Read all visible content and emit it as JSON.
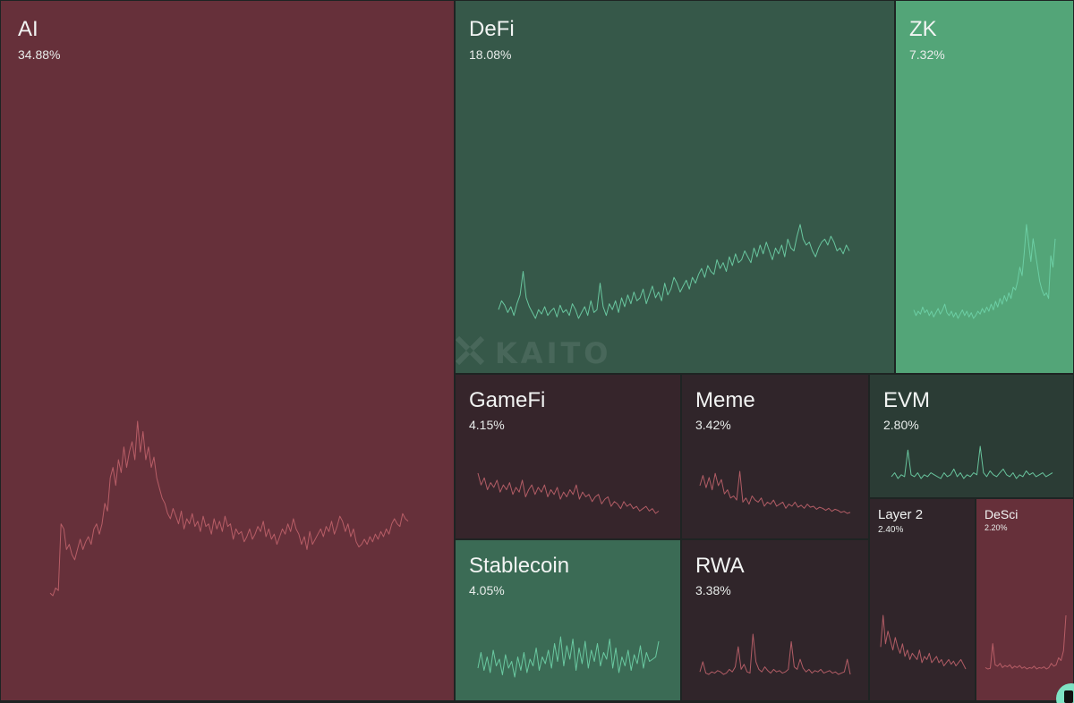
{
  "chart_data": {
    "type": "heatmap",
    "title": "",
    "watermark": "KAITO",
    "colors": {
      "strong_red": "#66303a",
      "dark_red": "#36252b",
      "darker_red": "#30252a",
      "strong_green": "#53a578",
      "mid_green": "#3b6b55",
      "dark_green": "#365849",
      "darkest_green": "#2b3c35",
      "line_red": "#c0636b",
      "line_green": "#6fd3a9"
    },
    "sectors": [
      {
        "name": "AI",
        "label": "AI",
        "share_pct": 34.88,
        "share_label": "34.88%",
        "trend": "down",
        "color_key": "strong_red",
        "series": [
          3,
          2,
          5,
          4,
          30,
          28,
          20,
          22,
          18,
          16,
          20,
          24,
          20,
          23,
          25,
          22,
          28,
          30,
          26,
          30,
          38,
          35,
          48,
          52,
          45,
          55,
          50,
          60,
          52,
          58,
          62,
          55,
          70,
          58,
          66,
          55,
          60,
          52,
          56,
          48,
          44,
          40,
          38,
          34,
          32,
          36,
          33,
          30,
          35,
          28,
          32,
          30,
          34,
          29,
          31,
          27,
          33,
          29,
          30,
          26,
          32,
          28,
          31,
          27,
          33,
          29,
          30,
          24,
          28,
          26,
          27,
          23,
          25,
          28,
          24,
          26,
          29,
          27,
          31,
          25,
          28,
          24,
          26,
          22,
          25,
          28,
          26,
          30,
          27,
          32,
          28,
          26,
          22,
          25,
          20,
          27,
          22,
          24,
          26,
          28,
          25,
          29,
          27,
          31,
          26,
          29,
          33,
          31,
          27,
          30,
          25,
          28,
          23,
          21,
          22,
          24,
          22,
          25,
          23,
          26,
          24,
          27,
          25,
          28,
          26,
          30,
          32,
          30,
          29,
          34,
          32,
          31
        ]
      },
      {
        "name": "DeFi",
        "label": "DeFi",
        "share_pct": 18.08,
        "share_label": "18.08%",
        "trend": "up",
        "color_key": "dark_green",
        "series": [
          12,
          18,
          15,
          10,
          14,
          8,
          16,
          22,
          38,
          20,
          14,
          10,
          6,
          12,
          9,
          14,
          8,
          11,
          13,
          7,
          15,
          10,
          12,
          8,
          16,
          12,
          6,
          10,
          14,
          8,
          18,
          10,
          12,
          30,
          14,
          8,
          16,
          12,
          18,
          10,
          20,
          14,
          22,
          16,
          24,
          18,
          20,
          26,
          16,
          22,
          28,
          20,
          24,
          18,
          30,
          22,
          26,
          34,
          30,
          24,
          28,
          32,
          26,
          34,
          30,
          36,
          40,
          34,
          42,
          38,
          36,
          46,
          40,
          44,
          38,
          48,
          42,
          50,
          44,
          46,
          52,
          48,
          44,
          54,
          48,
          56,
          50,
          58,
          52,
          46,
          54,
          50,
          56,
          48,
          60,
          54,
          52,
          62,
          70,
          60,
          56,
          58,
          52,
          48,
          54,
          58,
          60,
          56,
          62,
          58,
          52,
          54,
          50,
          56,
          52
        ]
      },
      {
        "name": "ZK",
        "label": "ZK",
        "share_pct": 7.32,
        "share_label": "7.32%",
        "trend": "up",
        "color_key": "strong_green",
        "series": [
          10,
          6,
          9,
          7,
          12,
          8,
          10,
          6,
          9,
          5,
          8,
          11,
          7,
          10,
          14,
          8,
          6,
          9,
          5,
          8,
          4,
          7,
          10,
          6,
          9,
          5,
          8,
          4,
          6,
          9,
          7,
          11,
          8,
          12,
          9,
          14,
          10,
          16,
          12,
          18,
          14,
          20,
          16,
          22,
          18,
          26,
          24,
          30,
          40,
          34,
          50,
          70,
          56,
          44,
          60,
          50,
          40,
          30,
          24,
          20,
          22,
          18,
          48,
          40,
          60
        ]
      },
      {
        "name": "GameFi",
        "label": "GameFi",
        "share_pct": 4.15,
        "share_label": "4.15%",
        "trend": "down",
        "color_key": "dark_red",
        "series": [
          40,
          30,
          36,
          26,
          32,
          28,
          34,
          24,
          30,
          26,
          32,
          22,
          28,
          24,
          34,
          20,
          26,
          30,
          22,
          28,
          24,
          30,
          20,
          26,
          22,
          28,
          18,
          24,
          20,
          26,
          22,
          30,
          18,
          24,
          20,
          22,
          16,
          20,
          22,
          14,
          18,
          20,
          12,
          16,
          14,
          10,
          16,
          12,
          14,
          10,
          12,
          8,
          10,
          12,
          8,
          10,
          6,
          8
        ]
      },
      {
        "name": "Meme",
        "label": "Meme",
        "share_pct": 3.42,
        "share_label": "3.42%",
        "trend": "down",
        "color_key": "darker_red",
        "series": [
          30,
          40,
          28,
          38,
          26,
          42,
          30,
          36,
          22,
          26,
          18,
          20,
          16,
          44,
          14,
          18,
          12,
          20,
          16,
          14,
          18,
          10,
          14,
          12,
          16,
          10,
          12,
          14,
          8,
          12,
          10,
          14,
          9,
          11,
          8,
          12,
          9,
          10,
          7,
          9,
          8,
          6,
          8,
          5,
          7,
          6,
          4,
          5,
          3,
          4
        ]
      },
      {
        "name": "EVM",
        "label": "EVM",
        "share_pct": 2.8,
        "share_label": "2.80%",
        "trend": "flat",
        "color_key": "darkest_green",
        "series": [
          10,
          12,
          9,
          11,
          10,
          24,
          11,
          10,
          12,
          9,
          11,
          10,
          12,
          11,
          10,
          9,
          12,
          10,
          11,
          14,
          10,
          12,
          9,
          11,
          10,
          12,
          11,
          26,
          12,
          10,
          13,
          11,
          10,
          12,
          14,
          11,
          10,
          12,
          9,
          11,
          10,
          13,
          11,
          12,
          10,
          11,
          12,
          10,
          11,
          12
        ]
      },
      {
        "name": "Stablecoin",
        "label": "Stablecoin",
        "share_pct": 4.05,
        "share_label": "4.05%",
        "trend": "flat",
        "color_key": "mid_green",
        "series": [
          20,
          34,
          18,
          30,
          16,
          36,
          22,
          28,
          14,
          32,
          20,
          26,
          12,
          30,
          18,
          34,
          16,
          28,
          22,
          38,
          18,
          30,
          24,
          36,
          20,
          42,
          26,
          48,
          22,
          40,
          28,
          46,
          18,
          38,
          24,
          44,
          20,
          36,
          26,
          42,
          22,
          34,
          28,
          46,
          20,
          38,
          16,
          30,
          22,
          36,
          18,
          32,
          24,
          40,
          20,
          34,
          26,
          28,
          30,
          44
        ]
      },
      {
        "name": "RWA",
        "label": "RWA",
        "share_pct": 3.38,
        "share_label": "3.38%",
        "trend": "flat",
        "color_key": "darker_red",
        "series": [
          10,
          18,
          9,
          8,
          10,
          9,
          11,
          10,
          8,
          9,
          12,
          10,
          14,
          30,
          12,
          16,
          10,
          9,
          40,
          18,
          12,
          10,
          14,
          11,
          9,
          12,
          10,
          11,
          9,
          10,
          12,
          34,
          14,
          12,
          20,
          13,
          10,
          12,
          9,
          11,
          10,
          12,
          9,
          10,
          11,
          9,
          10,
          8,
          9,
          10,
          20,
          8
        ]
      },
      {
        "name": "Layer 2",
        "label": "Layer 2",
        "share_pct": 2.4,
        "share_label": "2.40%",
        "trend": "down",
        "color_key": "darker_red",
        "series": [
          20,
          40,
          22,
          30,
          24,
          18,
          26,
          20,
          16,
          22,
          14,
          18,
          12,
          16,
          14,
          12,
          18,
          10,
          14,
          12,
          16,
          10,
          12,
          14,
          10,
          12,
          8,
          10,
          12,
          9,
          11,
          8,
          10,
          12,
          9,
          6
        ]
      },
      {
        "name": "DeSci",
        "label": "DeSci",
        "share_pct": 2.2,
        "share_label": "2.20%",
        "trend": "up",
        "color_key": "strong_red",
        "series": [
          6,
          4,
          5,
          40,
          10,
          8,
          12,
          6,
          9,
          7,
          10,
          5,
          8,
          6,
          9,
          5,
          7,
          4,
          6,
          5,
          8,
          4,
          6,
          5,
          7,
          4,
          6,
          12,
          8,
          10,
          20,
          16,
          30,
          80
        ]
      }
    ]
  }
}
